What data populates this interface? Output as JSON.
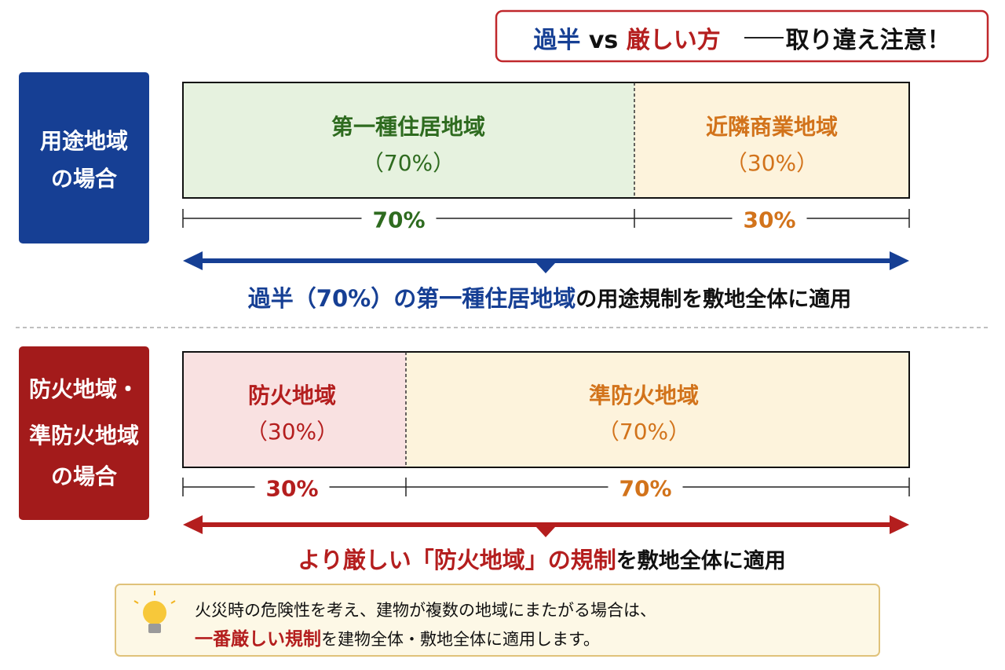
{
  "header": {
    "majority": "過半",
    "vs": "vs",
    "stricter": "厳しい方",
    "caution": "取り違え注意！"
  },
  "use_district": {
    "label": [
      "用途地域",
      "の場合"
    ],
    "zones": [
      {
        "name": "第一種住居地域",
        "share": "（70%）"
      },
      {
        "name": "近隣商業地域",
        "share": "（30%）"
      }
    ],
    "dimensions": [
      "70%",
      "30%"
    ],
    "conclusion": {
      "highlight": "過半（70%）の第一種住居地域",
      "rest": "の用途規制を敷地全体に適用"
    }
  },
  "fire_district": {
    "label": [
      "防火地域・",
      "準防火地域",
      "の場合"
    ],
    "zones": [
      {
        "name": "防火地域",
        "share": "（30%）"
      },
      {
        "name": "準防火地域",
        "share": "（70%）"
      }
    ],
    "dimensions": [
      "30%",
      "70%"
    ],
    "conclusion": {
      "highlight": "より厳しい「防火地域」の規制",
      "rest": "を敷地全体に適用"
    }
  },
  "note": {
    "line1": "火災時の危険性を考え、建物が複数の地域にまたがる場合は、",
    "highlight": "一番厳しい規制",
    "rest": "を建物全体・敷地全体に適用します。"
  }
}
